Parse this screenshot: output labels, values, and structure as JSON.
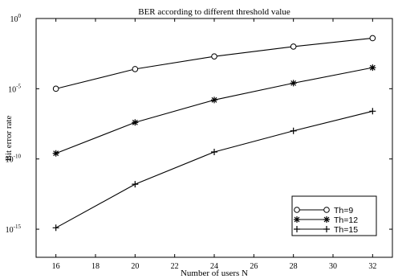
{
  "chart_data": {
    "type": "line",
    "title": "BER according to different threshold value",
    "xlabel": "Number of users N",
    "ylabel": "Bit error rate",
    "x": [
      16,
      20,
      24,
      28,
      32
    ],
    "xlim": [
      15,
      33
    ],
    "x_ticks": [
      16,
      18,
      20,
      22,
      24,
      26,
      28,
      30,
      32
    ],
    "y_scale": "log",
    "ylim_exponent": [
      -17,
      0
    ],
    "y_ticks": [
      {
        "exponent": 0,
        "label": "10",
        "sup": "0"
      },
      {
        "exponent": -5,
        "label": "10",
        "sup": "-5"
      },
      {
        "exponent": -10,
        "label": "10",
        "sup": "-10"
      },
      {
        "exponent": -15,
        "label": "10",
        "sup": "-15"
      }
    ],
    "grid": false,
    "legend_position": "bottom-right",
    "series": [
      {
        "name": "Th=9",
        "marker": "circle",
        "log10_values": [
          -5.0,
          -3.6,
          -2.7,
          -2.0,
          -1.4
        ]
      },
      {
        "name": "Th=12",
        "marker": "star",
        "log10_values": [
          -9.6,
          -7.4,
          -5.8,
          -4.6,
          -3.5
        ]
      },
      {
        "name": "Th=15",
        "marker": "plus",
        "log10_values": [
          -14.9,
          -11.8,
          -9.5,
          -8.0,
          -6.6
        ]
      }
    ]
  }
}
